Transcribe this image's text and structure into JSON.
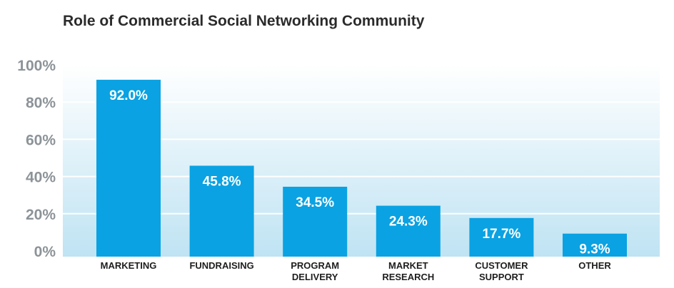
{
  "chart_data": {
    "type": "bar",
    "title": "Role of Commercial Social Networking Community",
    "xlabel": "",
    "ylabel": "",
    "ylim": [
      0,
      100
    ],
    "yticks": [
      0,
      20,
      40,
      60,
      80,
      100
    ],
    "ytick_labels": [
      "0%",
      "20%",
      "40%",
      "60%",
      "80%",
      "100%"
    ],
    "categories": [
      "MARKETING",
      "FUNDRAISING",
      "PROGRAM DELIVERY",
      "MARKET RESEARCH",
      "CUSTOMER SUPPORT",
      "OTHER"
    ],
    "category_lines": [
      [
        "MARKETING"
      ],
      [
        "FUNDRAISING"
      ],
      [
        "PROGRAM",
        "DELIVERY"
      ],
      [
        "MARKET",
        "RESEARCH"
      ],
      [
        "CUSTOMER",
        "SUPPORT"
      ],
      [
        "OTHER"
      ]
    ],
    "values": [
      92.0,
      45.8,
      34.5,
      24.3,
      17.7,
      9.3
    ],
    "value_labels": [
      "92.0%",
      "45.8%",
      "34.5%",
      "24.3%",
      "17.7%",
      "9.3%"
    ],
    "grid": true,
    "colors": {
      "bar": "#0aa2e2",
      "plot_bg_top": "#ffffff",
      "plot_bg_bottom": "#bfe3f3",
      "grid": "#ffffff",
      "tick_text": "#8c9398",
      "category_text": "#1e1e1e",
      "value_text": "#ffffff"
    }
  }
}
